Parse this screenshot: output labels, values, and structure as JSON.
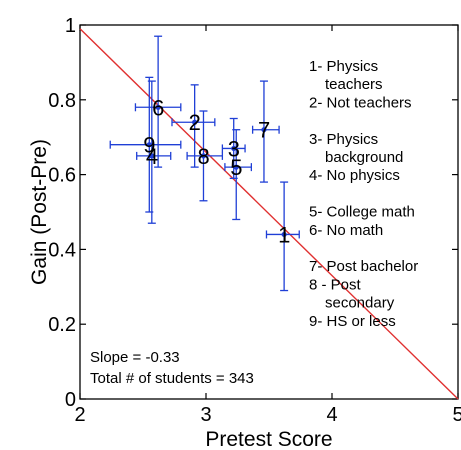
{
  "chart_data": {
    "type": "scatter",
    "xlabel": "Pretest Score",
    "ylabel": "Gain (Post-Pre)",
    "xlim": [
      2,
      5
    ],
    "ylim": [
      0,
      1
    ],
    "xticks": [
      "2",
      "3",
      "4",
      "5"
    ],
    "yticks": [
      "0",
      "0.2",
      "0.4",
      "0.6",
      "0.8",
      "1"
    ],
    "grid": false,
    "points": [
      {
        "label": "1",
        "x": 3.62,
        "y": 0.44,
        "xerr": [
          3.48,
          3.74
        ],
        "yerr": [
          0.29,
          0.58
        ]
      },
      {
        "label": "2",
        "x": 2.91,
        "y": 0.74,
        "xerr": [
          2.73,
          3.07
        ],
        "yerr": [
          0.62,
          0.84
        ]
      },
      {
        "label": "3",
        "x": 3.22,
        "y": 0.67,
        "xerr": [
          3.13,
          3.31
        ],
        "yerr": [
          0.59,
          0.75
        ]
      },
      {
        "label": "4",
        "x": 2.57,
        "y": 0.65,
        "xerr": [
          2.45,
          2.72
        ],
        "yerr": [
          0.47,
          0.85
        ]
      },
      {
        "label": "5",
        "x": 3.24,
        "y": 0.62,
        "xerr": [
          3.15,
          3.36
        ],
        "yerr": [
          0.48,
          0.72
        ]
      },
      {
        "label": "6",
        "x": 2.62,
        "y": 0.78,
        "xerr": [
          2.44,
          2.8
        ],
        "yerr": [
          0.62,
          0.97
        ]
      },
      {
        "label": "7",
        "x": 3.46,
        "y": 0.72,
        "xerr": [
          3.37,
          3.58
        ],
        "yerr": [
          0.58,
          0.85
        ]
      },
      {
        "label": "8",
        "x": 2.98,
        "y": 0.65,
        "xerr": [
          2.85,
          3.13
        ],
        "yerr": [
          0.53,
          0.77
        ]
      },
      {
        "label": "9",
        "x": 2.55,
        "y": 0.68,
        "xerr": [
          2.24,
          2.8
        ],
        "yerr": [
          0.5,
          0.86
        ]
      }
    ],
    "fit_line": {
      "x": [
        2,
        5
      ],
      "y": [
        0.99,
        0.0
      ],
      "color": "#e03030"
    },
    "colors": {
      "points": "#1f3fd6",
      "fit": "#e03030"
    },
    "legend": {
      "placement": "top-right",
      "lines": [
        "1- Physics",
        "teachers",
        "2- Not teachers",
        "",
        "3- Physics",
        "background",
        "4- No physics",
        "",
        "5- College math",
        "6- No math",
        "",
        "7- Post bachelor",
        "8 - Post",
        "secondary",
        "9- HS or less"
      ]
    },
    "annotations": [
      "Slope = -0.33",
      "Total # of students = 343"
    ]
  }
}
